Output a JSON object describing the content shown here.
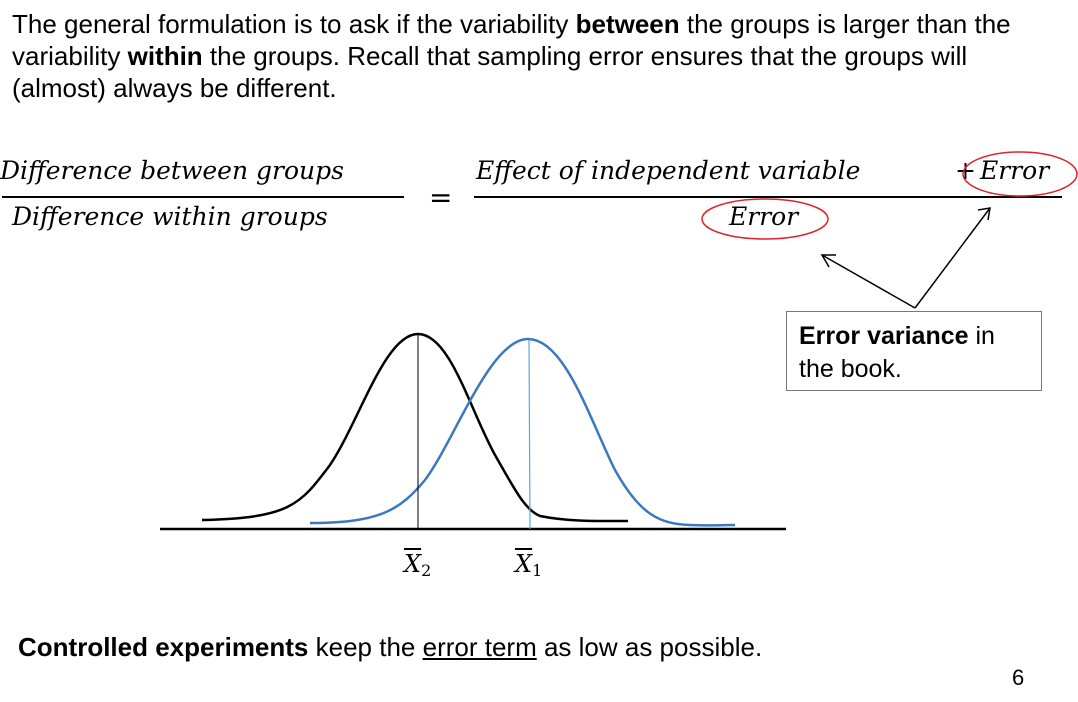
{
  "intro": {
    "part1": "The general formulation is to ask if the variability ",
    "bold1": "between",
    "part2": " the groups is larger than the variability ",
    "bold2": "within",
    "part3": " the groups. Recall that sampling error ensures that the groups will (almost) always be different."
  },
  "formula": {
    "lhs_numerator": "Difference between groups",
    "lhs_denominator": "Difference within groups",
    "equals": "=",
    "rhs_numerator_main": "Effect of independent variable",
    "rhs_plus": "+",
    "rhs_numerator_error": "Error",
    "rhs_denominator": "Error"
  },
  "callout": {
    "bold": "Error variance",
    "rest_line1": " in",
    "line2": "the book."
  },
  "axis_labels": {
    "x2": "X",
    "x2_sub": "2",
    "x1": "X",
    "x1_sub": "1"
  },
  "conclusion": {
    "bold": "Controlled experiments",
    "part1": " keep the ",
    "underlined": "error term",
    "part2": " as low as possible."
  },
  "page_number": "6",
  "colors": {
    "curve_black": "#000000",
    "curve_blue": "#3b78c0",
    "mean_line_blue": "#5aa8e0",
    "ellipse_red": "#e0242a"
  }
}
